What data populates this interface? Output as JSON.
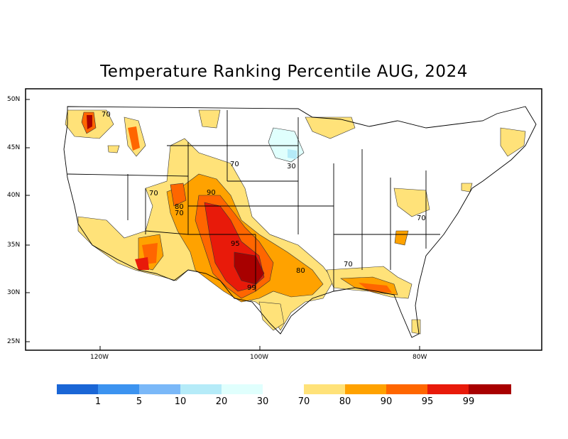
{
  "title": "Temperature Ranking Percentile AUG, 2024",
  "map": {
    "y_ticks": [
      "50N",
      "45N",
      "40N",
      "35N",
      "30N",
      "25N"
    ],
    "x_ticks": [
      "120W",
      "100W",
      "80W"
    ],
    "contour_labels": [
      "70",
      "70",
      "70",
      "80",
      "70",
      "90",
      "95",
      "99",
      "80",
      "70",
      "70",
      "30"
    ]
  },
  "legend": {
    "cold": {
      "colors": [
        "#1a66d6",
        "#3c93f0",
        "#7ab8f8",
        "#b5ebf8",
        "#e0fffd"
      ],
      "labels": [
        "1",
        "5",
        "10",
        "20",
        "30"
      ]
    },
    "warm": {
      "colors": [
        "#ffe279",
        "#ffa200",
        "#ff6600",
        "#e81a0a",
        "#a80000"
      ],
      "labels": [
        "70",
        "80",
        "90",
        "95",
        "99"
      ]
    }
  }
}
